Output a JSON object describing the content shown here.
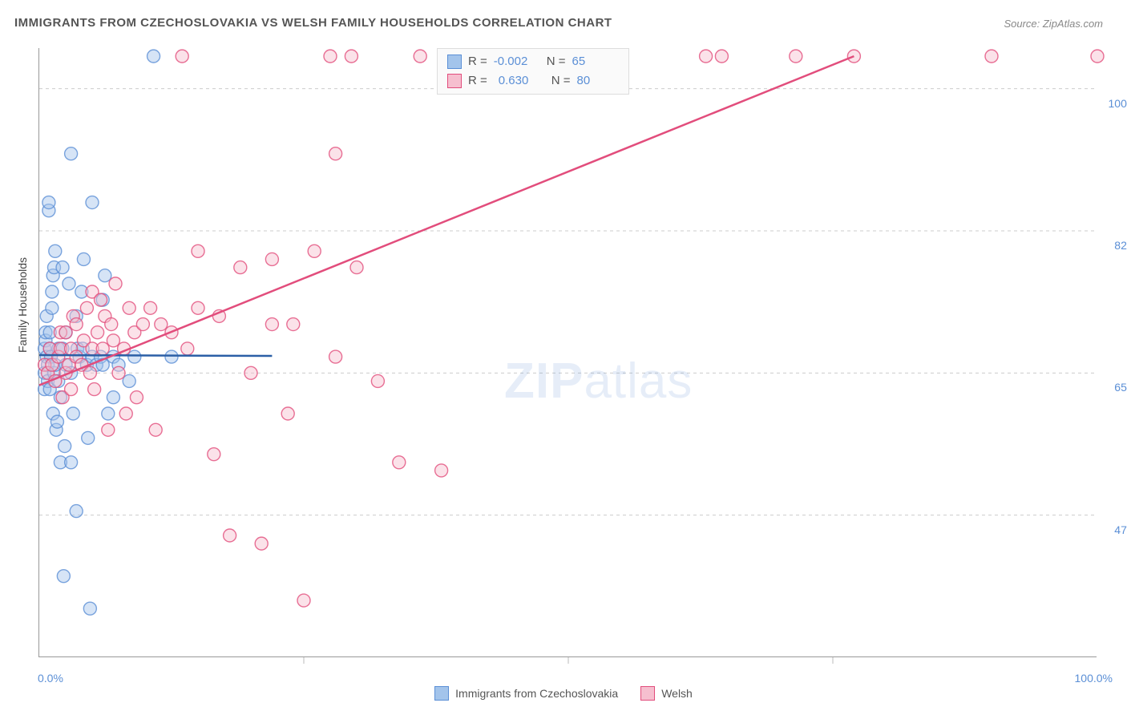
{
  "title": "IMMIGRANTS FROM CZECHOSLOVAKIA VS WELSH FAMILY HOUSEHOLDS CORRELATION CHART",
  "source": "Source: ZipAtlas.com",
  "ylabel": "Family Households",
  "watermark": {
    "bold": "ZIP",
    "thin": "atlas"
  },
  "chart": {
    "type": "scatter-correlation",
    "background_color": "#ffffff",
    "grid_color": "#cccccc",
    "axis_color": "#999999",
    "xlim": [
      0,
      100
    ],
    "ylim": [
      30,
      105
    ],
    "x_ticks": [
      0,
      25,
      50,
      75,
      100
    ],
    "x_tick_labels": {
      "0": "0.0%",
      "100": "100.0%"
    },
    "y_gridlines": [
      47.5,
      65.0,
      82.5,
      100.0
    ],
    "y_tick_labels": [
      "47.5%",
      "65.0%",
      "82.5%",
      "100.0%"
    ],
    "label_color": "#5b8fd6",
    "label_fontsize": 14,
    "title_fontsize": 15,
    "title_color": "#555555",
    "marker_radius": 8,
    "marker_opacity": 0.45,
    "series": [
      {
        "name": "Immigrants from Czechoslovakia",
        "color_fill": "#a3c4eb",
        "color_stroke": "#5b8fd6",
        "R": "-0.002",
        "N": "65",
        "trendline": {
          "x1": 0,
          "y1": 67.2,
          "x2": 22,
          "y2": 67.1,
          "color": "#2b5fa6",
          "width": 2.5
        },
        "points": [
          [
            0.5,
            63
          ],
          [
            0.5,
            65
          ],
          [
            0.5,
            68
          ],
          [
            0.6,
            69
          ],
          [
            0.6,
            70
          ],
          [
            0.7,
            67
          ],
          [
            0.7,
            72
          ],
          [
            0.8,
            64
          ],
          [
            0.8,
            66
          ],
          [
            0.9,
            85
          ],
          [
            0.9,
            86
          ],
          [
            1.0,
            63
          ],
          [
            1.0,
            68
          ],
          [
            1.0,
            70
          ],
          [
            1.1,
            67
          ],
          [
            1.2,
            73
          ],
          [
            1.2,
            75
          ],
          [
            1.3,
            60
          ],
          [
            1.3,
            77
          ],
          [
            1.4,
            65
          ],
          [
            1.4,
            78
          ],
          [
            1.5,
            66
          ],
          [
            1.5,
            80
          ],
          [
            1.6,
            58
          ],
          [
            1.7,
            59
          ],
          [
            1.8,
            64
          ],
          [
            1.8,
            68
          ],
          [
            2.0,
            54
          ],
          [
            2.0,
            62
          ],
          [
            2.2,
            68
          ],
          [
            2.2,
            78
          ],
          [
            2.3,
            40
          ],
          [
            2.4,
            56
          ],
          [
            2.5,
            66
          ],
          [
            2.5,
            70
          ],
          [
            2.8,
            76
          ],
          [
            3.0,
            54
          ],
          [
            3.0,
            65
          ],
          [
            3.0,
            92
          ],
          [
            3.2,
            60
          ],
          [
            3.5,
            48
          ],
          [
            3.5,
            72
          ],
          [
            3.6,
            68
          ],
          [
            3.8,
            67
          ],
          [
            4.0,
            75
          ],
          [
            4.1,
            68
          ],
          [
            4.2,
            79
          ],
          [
            4.5,
            66
          ],
          [
            4.6,
            57
          ],
          [
            4.8,
            36
          ],
          [
            5.0,
            67
          ],
          [
            5.0,
            86
          ],
          [
            5.4,
            66
          ],
          [
            5.8,
            67
          ],
          [
            6.0,
            66
          ],
          [
            6.0,
            74
          ],
          [
            6.2,
            77
          ],
          [
            6.5,
            60
          ],
          [
            7.0,
            62
          ],
          [
            7.0,
            67
          ],
          [
            7.5,
            66
          ],
          [
            8.5,
            64
          ],
          [
            9.0,
            67
          ],
          [
            10.8,
            104
          ],
          [
            12.5,
            67
          ]
        ]
      },
      {
        "name": "Welsh",
        "color_fill": "#f6bfcf",
        "color_stroke": "#e24d7c",
        "R": "0.630",
        "N": "80",
        "trendline": {
          "x1": 0,
          "y1": 63.5,
          "x2": 77,
          "y2": 104,
          "color": "#e24d7c",
          "width": 2.5
        },
        "points": [
          [
            0.5,
            66
          ],
          [
            0.8,
            65
          ],
          [
            1.0,
            68
          ],
          [
            1.2,
            66
          ],
          [
            1.5,
            64
          ],
          [
            1.8,
            67
          ],
          [
            2.0,
            68
          ],
          [
            2.0,
            70
          ],
          [
            2.2,
            62
          ],
          [
            2.5,
            65
          ],
          [
            2.5,
            70
          ],
          [
            2.8,
            66
          ],
          [
            3.0,
            63
          ],
          [
            3.0,
            68
          ],
          [
            3.2,
            72
          ],
          [
            3.5,
            67
          ],
          [
            3.5,
            71
          ],
          [
            4.0,
            66
          ],
          [
            4.2,
            69
          ],
          [
            4.5,
            73
          ],
          [
            4.8,
            65
          ],
          [
            5.0,
            68
          ],
          [
            5.0,
            75
          ],
          [
            5.2,
            63
          ],
          [
            5.5,
            70
          ],
          [
            5.8,
            74
          ],
          [
            6.0,
            68
          ],
          [
            6.2,
            72
          ],
          [
            6.5,
            58
          ],
          [
            6.8,
            71
          ],
          [
            7.0,
            69
          ],
          [
            7.2,
            76
          ],
          [
            7.5,
            65
          ],
          [
            8.0,
            68
          ],
          [
            8.2,
            60
          ],
          [
            8.5,
            73
          ],
          [
            9.0,
            70
          ],
          [
            9.2,
            62
          ],
          [
            9.8,
            71
          ],
          [
            10.5,
            73
          ],
          [
            11.0,
            58
          ],
          [
            11.5,
            71
          ],
          [
            12.5,
            70
          ],
          [
            13.5,
            104
          ],
          [
            14.0,
            68
          ],
          [
            15.0,
            73
          ],
          [
            15.0,
            80
          ],
          [
            16.5,
            55
          ],
          [
            17.0,
            72
          ],
          [
            18.0,
            45
          ],
          [
            19.0,
            78
          ],
          [
            20.0,
            65
          ],
          [
            21.0,
            44
          ],
          [
            22.0,
            71
          ],
          [
            22.0,
            79
          ],
          [
            23.5,
            60
          ],
          [
            24.0,
            71
          ],
          [
            25.0,
            37
          ],
          [
            26.0,
            80
          ],
          [
            27.5,
            104
          ],
          [
            28.0,
            67
          ],
          [
            28.0,
            92
          ],
          [
            29.5,
            104
          ],
          [
            30.0,
            78
          ],
          [
            32.0,
            64
          ],
          [
            34.0,
            54
          ],
          [
            36.0,
            104
          ],
          [
            38.0,
            53
          ],
          [
            40.0,
            104
          ],
          [
            41.0,
            104
          ],
          [
            44.0,
            104
          ],
          [
            46.0,
            104
          ],
          [
            48.0,
            104
          ],
          [
            52.0,
            104
          ],
          [
            63.0,
            104
          ],
          [
            64.5,
            104
          ],
          [
            71.5,
            104
          ],
          [
            77.0,
            104
          ],
          [
            90.0,
            104
          ],
          [
            100.0,
            104
          ]
        ]
      }
    ]
  },
  "bottom_legend": [
    {
      "label": "Immigrants from Czechoslovakia",
      "fill": "#a3c4eb",
      "stroke": "#5b8fd6"
    },
    {
      "label": "Welsh",
      "fill": "#f6bfcf",
      "stroke": "#e24d7c"
    }
  ]
}
